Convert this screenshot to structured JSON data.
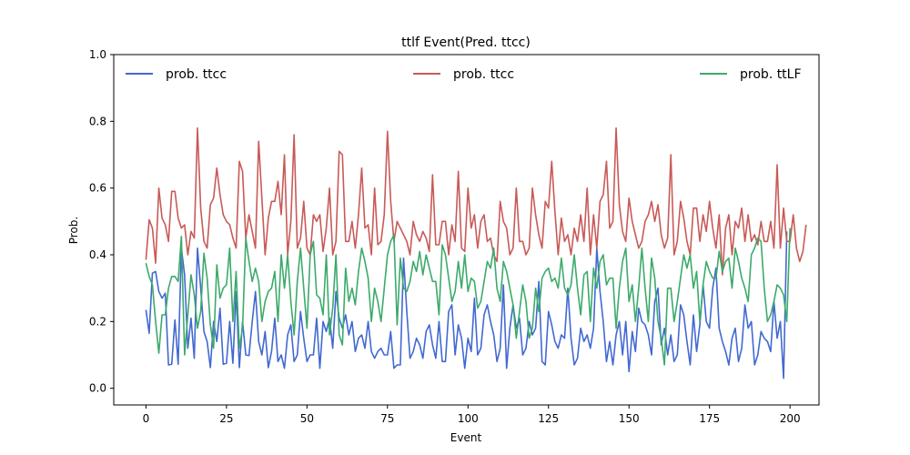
{
  "chart_data": {
    "type": "line",
    "title": "ttlf Event(Pred. ttcc)",
    "xlabel": "Event",
    "ylabel": "Prob.",
    "xlim": [
      -10,
      209
    ],
    "ylim": [
      -0.05,
      1.0
    ],
    "xticks": [
      0,
      25,
      50,
      75,
      100,
      125,
      150,
      175,
      200
    ],
    "yticks": [
      0.0,
      0.2,
      0.4,
      0.6,
      0.8,
      1.0
    ],
    "grid": false,
    "legend_position": "top",
    "series": [
      {
        "name": "prob. ttcc",
        "color": "#4169d1",
        "values": [
          0.235,
          0.165,
          0.345,
          0.35,
          0.29,
          0.27,
          0.285,
          0.07,
          0.072,
          0.205,
          0.072,
          0.42,
          0.34,
          0.12,
          0.21,
          0.09,
          0.42,
          0.3,
          0.17,
          0.14,
          0.062,
          0.2,
          0.14,
          0.24,
          0.072,
          0.075,
          0.2,
          0.075,
          0.29,
          0.062,
          0.2,
          0.1,
          0.098,
          0.2,
          0.29,
          0.14,
          0.1,
          0.17,
          0.062,
          0.11,
          0.21,
          0.08,
          0.1,
          0.06,
          0.16,
          0.19,
          0.08,
          0.1,
          0.23,
          0.15,
          0.08,
          0.1,
          0.1,
          0.21,
          0.06,
          0.2,
          0.17,
          0.21,
          0.12,
          0.29,
          0.21,
          0.18,
          0.22,
          0.16,
          0.2,
          0.11,
          0.15,
          0.16,
          0.12,
          0.2,
          0.11,
          0.09,
          0.11,
          0.12,
          0.1,
          0.1,
          0.17,
          0.06,
          0.07,
          0.07,
          0.39,
          0.23,
          0.09,
          0.11,
          0.15,
          0.13,
          0.09,
          0.17,
          0.19,
          0.13,
          0.09,
          0.2,
          0.08,
          0.08,
          0.23,
          0.25,
          0.1,
          0.19,
          0.15,
          0.06,
          0.15,
          0.11,
          0.27,
          0.1,
          0.12,
          0.22,
          0.25,
          0.2,
          0.16,
          0.08,
          0.12,
          0.31,
          0.06,
          0.18,
          0.25,
          0.18,
          0.21,
          0.1,
          0.12,
          0.2,
          0.16,
          0.18,
          0.32,
          0.08,
          0.07,
          0.23,
          0.19,
          0.14,
          0.12,
          0.16,
          0.15,
          0.3,
          0.15,
          0.07,
          0.09,
          0.18,
          0.14,
          0.16,
          0.12,
          0.18,
          0.42,
          0.29,
          0.2,
          0.08,
          0.14,
          0.07,
          0.16,
          0.2,
          0.1,
          0.2,
          0.05,
          0.17,
          0.11,
          0.24,
          0.2,
          0.19,
          0.16,
          0.1,
          0.26,
          0.3,
          0.13,
          0.18,
          0.1,
          0.16,
          0.08,
          0.1,
          0.25,
          0.22,
          0.14,
          0.07,
          0.22,
          0.11,
          0.19,
          0.31,
          0.2,
          0.18,
          0.3,
          0.36,
          0.18,
          0.14,
          0.11,
          0.07,
          0.15,
          0.18,
          0.08,
          0.12,
          0.25,
          0.18,
          0.2,
          0.07,
          0.1,
          0.17,
          0.15,
          0.14,
          0.11,
          0.26,
          0.15,
          0.2,
          0.03,
          0.47
        ]
      },
      {
        "name": "prob. ttcc",
        "color": "#c85a57",
        "values": [
          0.385,
          0.505,
          0.48,
          0.375,
          0.6,
          0.51,
          0.49,
          0.44,
          0.59,
          0.59,
          0.51,
          0.48,
          0.49,
          0.4,
          0.47,
          0.45,
          0.78,
          0.54,
          0.44,
          0.42,
          0.55,
          0.57,
          0.66,
          0.58,
          0.52,
          0.5,
          0.49,
          0.45,
          0.42,
          0.68,
          0.65,
          0.45,
          0.52,
          0.47,
          0.42,
          0.74,
          0.57,
          0.4,
          0.51,
          0.56,
          0.56,
          0.62,
          0.52,
          0.7,
          0.4,
          0.5,
          0.76,
          0.42,
          0.45,
          0.56,
          0.42,
          0.4,
          0.52,
          0.5,
          0.52,
          0.41,
          0.48,
          0.6,
          0.4,
          0.44,
          0.71,
          0.7,
          0.44,
          0.44,
          0.5,
          0.42,
          0.52,
          0.66,
          0.48,
          0.49,
          0.4,
          0.6,
          0.43,
          0.44,
          0.52,
          0.77,
          0.56,
          0.44,
          0.5,
          0.48,
          0.46,
          0.44,
          0.4,
          0.5,
          0.46,
          0.44,
          0.47,
          0.45,
          0.41,
          0.64,
          0.43,
          0.43,
          0.5,
          0.5,
          0.4,
          0.49,
          0.44,
          0.65,
          0.42,
          0.41,
          0.6,
          0.48,
          0.52,
          0.42,
          0.5,
          0.52,
          0.44,
          0.45,
          0.4,
          0.38,
          0.56,
          0.5,
          0.48,
          0.4,
          0.42,
          0.6,
          0.44,
          0.44,
          0.4,
          0.42,
          0.6,
          0.52,
          0.46,
          0.42,
          0.56,
          0.54,
          0.68,
          0.53,
          0.4,
          0.51,
          0.44,
          0.46,
          0.4,
          0.48,
          0.44,
          0.52,
          0.44,
          0.6,
          0.4,
          0.52,
          0.42,
          0.56,
          0.58,
          0.68,
          0.48,
          0.5,
          0.78,
          0.55,
          0.47,
          0.44,
          0.57,
          0.5,
          0.46,
          0.42,
          0.44,
          0.5,
          0.52,
          0.56,
          0.5,
          0.55,
          0.46,
          0.42,
          0.45,
          0.7,
          0.4,
          0.44,
          0.56,
          0.51,
          0.44,
          0.4,
          0.54,
          0.54,
          0.44,
          0.52,
          0.47,
          0.56,
          0.48,
          0.42,
          0.52,
          0.34,
          0.48,
          0.52,
          0.4,
          0.5,
          0.48,
          0.54,
          0.44,
          0.52,
          0.44,
          0.46,
          0.43,
          0.5,
          0.44,
          0.44,
          0.5,
          0.42,
          0.67,
          0.42,
          0.54,
          0.44,
          0.44,
          0.52,
          0.42,
          0.38,
          0.41,
          0.49
        ]
      },
      {
        "name": "prob. ttLF",
        "color": "#3caa6a",
        "values": [
          0.375,
          0.335,
          0.31,
          0.2,
          0.105,
          0.22,
          0.22,
          0.3,
          0.335,
          0.335,
          0.32,
          0.455,
          0.1,
          0.22,
          0.34,
          0.28,
          0.18,
          0.23,
          0.405,
          0.33,
          0.19,
          0.12,
          0.37,
          0.27,
          0.3,
          0.31,
          0.42,
          0.2,
          0.35,
          0.12,
          0.18,
          0.45,
          0.38,
          0.32,
          0.36,
          0.32,
          0.2,
          0.26,
          0.29,
          0.3,
          0.35,
          0.2,
          0.4,
          0.3,
          0.4,
          0.26,
          0.16,
          0.32,
          0.42,
          0.3,
          0.18,
          0.4,
          0.44,
          0.28,
          0.27,
          0.22,
          0.4,
          0.16,
          0.24,
          0.4,
          0.16,
          0.13,
          0.36,
          0.26,
          0.3,
          0.25,
          0.35,
          0.42,
          0.38,
          0.33,
          0.2,
          0.3,
          0.26,
          0.2,
          0.3,
          0.4,
          0.44,
          0.46,
          0.19,
          0.39,
          0.3,
          0.29,
          0.32,
          0.38,
          0.35,
          0.41,
          0.34,
          0.4,
          0.36,
          0.32,
          0.32,
          0.22,
          0.43,
          0.4,
          0.33,
          0.26,
          0.29,
          0.38,
          0.3,
          0.4,
          0.29,
          0.33,
          0.32,
          0.24,
          0.26,
          0.32,
          0.38,
          0.36,
          0.42,
          0.3,
          0.26,
          0.38,
          0.35,
          0.3,
          0.25,
          0.15,
          0.23,
          0.31,
          0.26,
          0.15,
          0.18,
          0.3,
          0.23,
          0.33,
          0.35,
          0.36,
          0.32,
          0.33,
          0.3,
          0.39,
          0.3,
          0.28,
          0.31,
          0.4,
          0.3,
          0.22,
          0.34,
          0.35,
          0.2,
          0.36,
          0.3,
          0.38,
          0.4,
          0.31,
          0.33,
          0.33,
          0.18,
          0.3,
          0.38,
          0.42,
          0.26,
          0.31,
          0.2,
          0.3,
          0.42,
          0.3,
          0.2,
          0.39,
          0.33,
          0.2,
          0.15,
          0.07,
          0.3,
          0.3,
          0.2,
          0.26,
          0.33,
          0.4,
          0.36,
          0.4,
          0.3,
          0.35,
          0.2,
          0.31,
          0.38,
          0.35,
          0.33,
          0.33,
          0.41,
          0.35,
          0.38,
          0.39,
          0.3,
          0.42,
          0.38,
          0.33,
          0.3,
          0.26,
          0.4,
          0.42,
          0.45,
          0.44,
          0.3,
          0.2,
          0.22,
          0.26,
          0.31,
          0.3,
          0.28,
          0.2,
          0.48
        ]
      }
    ]
  }
}
